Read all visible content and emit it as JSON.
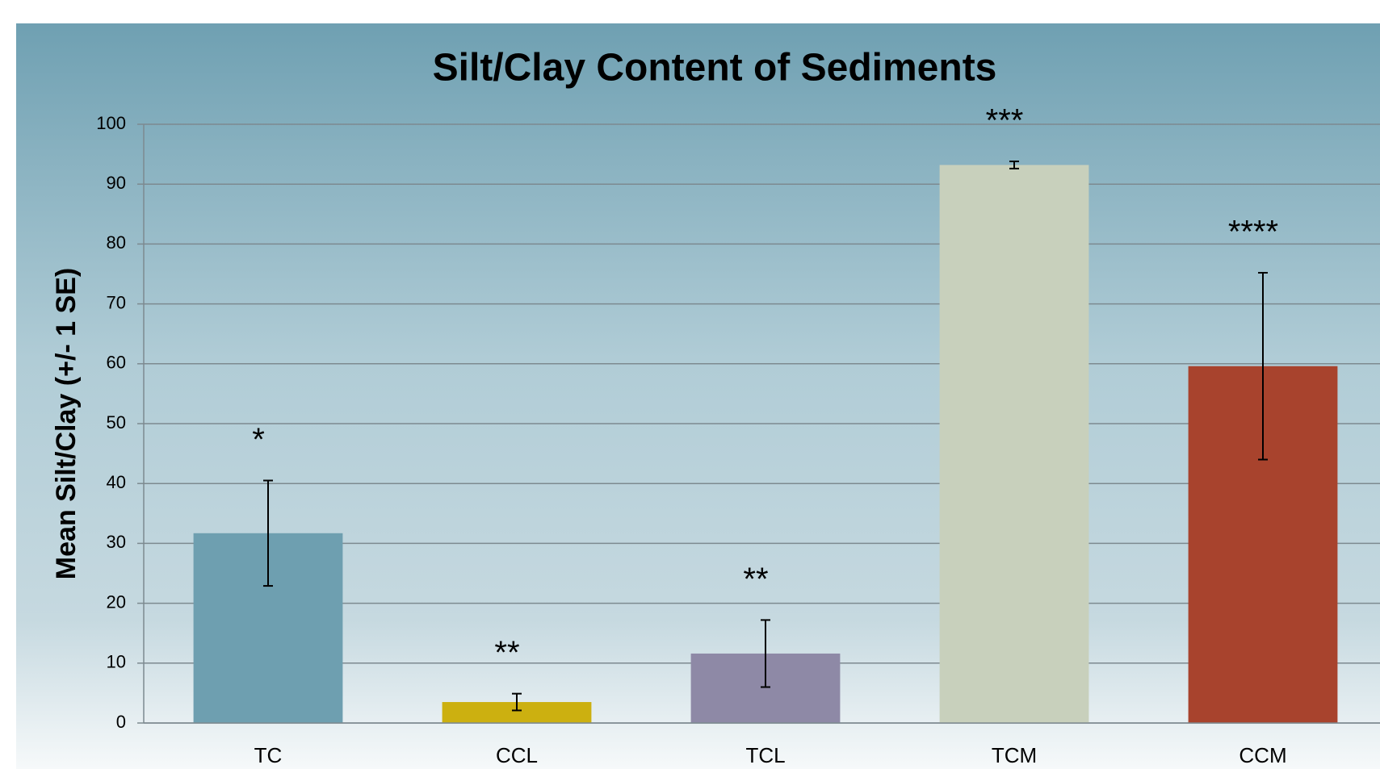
{
  "chart_data": {
    "type": "bar",
    "title": "Silt/Clay Content of Sediments",
    "y_label": "Mean Silt/Clay (+/- 1 SE)",
    "categories": [
      "TC",
      "CCL",
      "TCL",
      "TCM",
      "CCM"
    ],
    "values": [
      31.7,
      3.5,
      11.6,
      93.2,
      59.6
    ],
    "errors": [
      8.8,
      1.4,
      5.6,
      0.6,
      15.6
    ],
    "colors": [
      "#6e9fb0",
      "#ccb010",
      "#8e89a6",
      "#c8d0bc",
      "#a8432d"
    ],
    "annotations": [
      "*",
      "**",
      "**",
      "***",
      "****"
    ],
    "ylim": [
      0,
      100
    ],
    "yticks": [
      0,
      10,
      20,
      30,
      40,
      50,
      60,
      70,
      80,
      90,
      100
    ],
    "grid": true
  }
}
